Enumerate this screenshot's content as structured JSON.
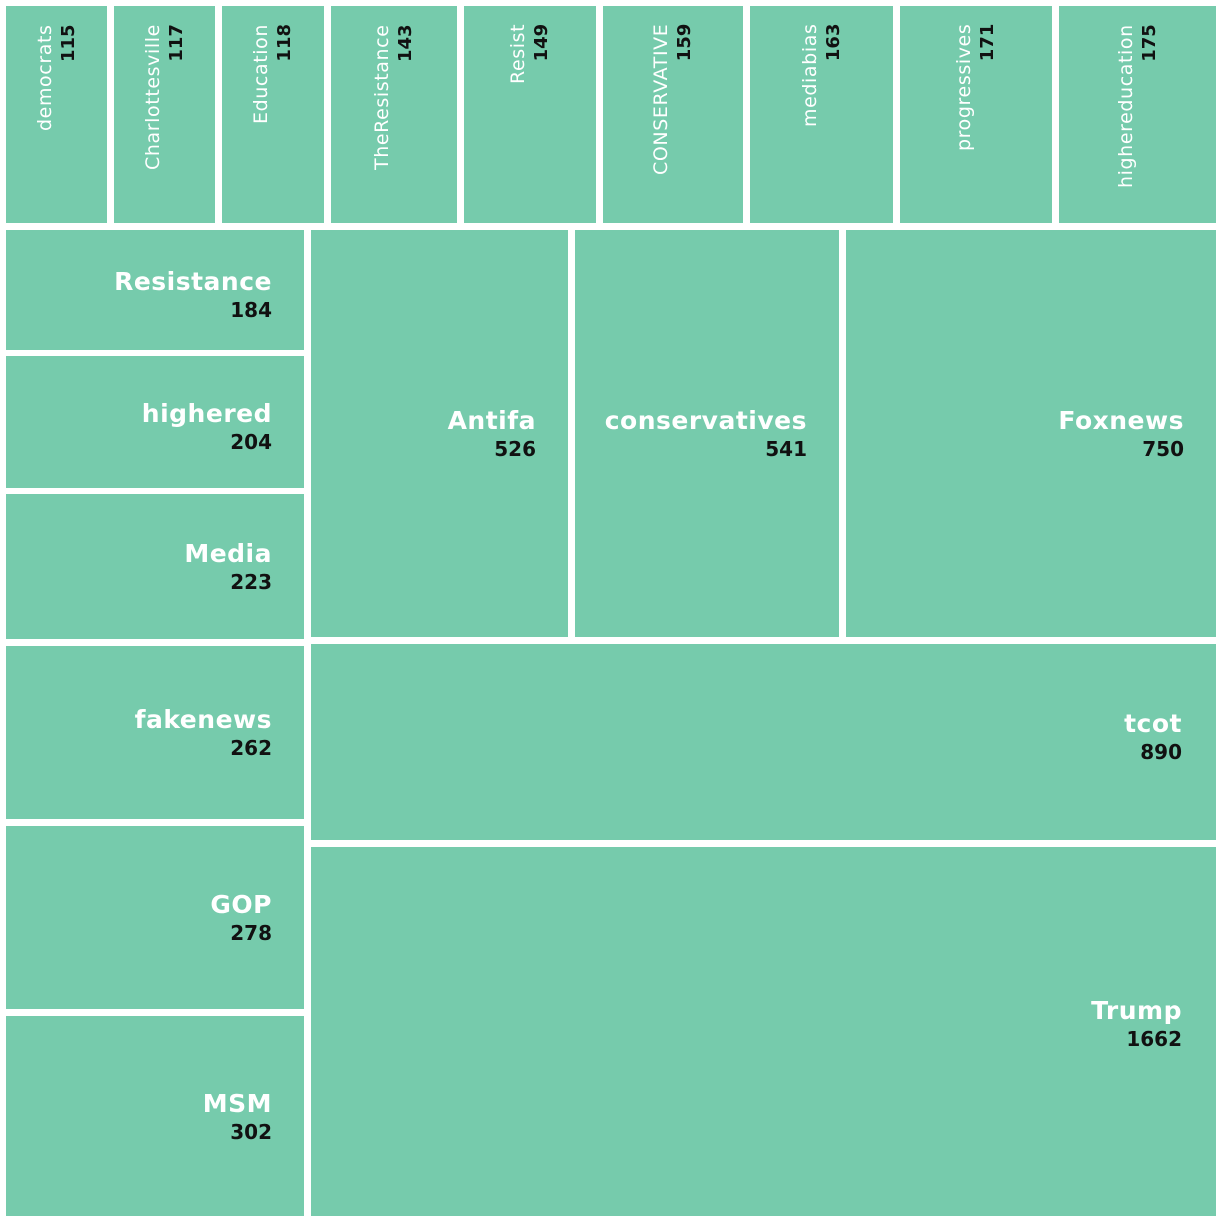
{
  "colors": {
    "tile": "#76cbac",
    "gap": "#ffffff",
    "name_text": "#ffffff",
    "value_text": "#111111"
  },
  "chart_data": {
    "type": "treemap",
    "title": "",
    "items": [
      {
        "name": "democrats",
        "value": 115
      },
      {
        "name": "Charlottesville",
        "value": 117
      },
      {
        "name": "Education",
        "value": 118
      },
      {
        "name": "TheResistance",
        "value": 143
      },
      {
        "name": "Resist",
        "value": 149
      },
      {
        "name": "CONSERVATIVE",
        "value": 159
      },
      {
        "name": "mediabias",
        "value": 163
      },
      {
        "name": "progressives",
        "value": 171
      },
      {
        "name": "highereducation",
        "value": 175
      },
      {
        "name": "Resistance",
        "value": 184
      },
      {
        "name": "highered",
        "value": 204
      },
      {
        "name": "Media",
        "value": 223
      },
      {
        "name": "fakenews",
        "value": 262
      },
      {
        "name": "GOP",
        "value": 278
      },
      {
        "name": "MSM",
        "value": 302
      },
      {
        "name": "Antifa",
        "value": 526
      },
      {
        "name": "conservatives",
        "value": 541
      },
      {
        "name": "Foxnews",
        "value": 750
      },
      {
        "name": "tcot",
        "value": 890
      },
      {
        "name": "Trump",
        "value": 1662
      }
    ]
  }
}
